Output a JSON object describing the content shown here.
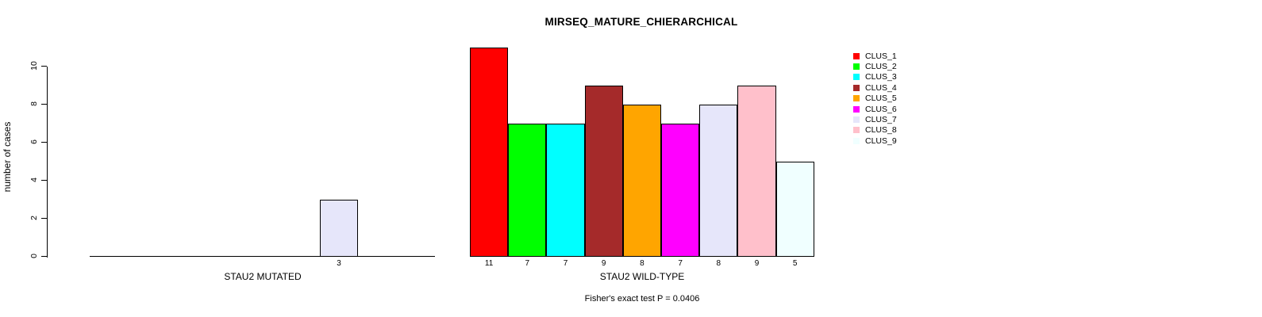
{
  "chart_data": {
    "type": "bar",
    "title": "MIRSEQ_MATURE_CHIERARCHICAL",
    "ylabel": "number of cases",
    "ylim": [
      0,
      10
    ],
    "yticks": [
      0,
      2,
      4,
      6,
      8,
      10
    ],
    "grid": false,
    "legend_position": "right",
    "footer": "Fisher's exact test P = 0.0406",
    "categories": [
      "CLUS_1",
      "CLUS_2",
      "CLUS_3",
      "CLUS_4",
      "CLUS_5",
      "CLUS_6",
      "CLUS_7",
      "CLUS_8",
      "CLUS_9"
    ],
    "legend": [
      {
        "label": "CLUS_1",
        "color": "#FF0000"
      },
      {
        "label": "CLUS_2",
        "color": "#00FF00"
      },
      {
        "label": "CLUS_3",
        "color": "#00FFFF"
      },
      {
        "label": "CLUS_4",
        "color": "#A52A2A"
      },
      {
        "label": "CLUS_5",
        "color": "#FFA500"
      },
      {
        "label": "CLUS_6",
        "color": "#FF00FF"
      },
      {
        "label": "CLUS_7",
        "color": "#E6E6FA"
      },
      {
        "label": "CLUS_8",
        "color": "#FFC0CB"
      },
      {
        "label": "CLUS_9",
        "color": "#F0FFFF"
      }
    ],
    "groups": [
      {
        "label": "STAU2 MUTATED",
        "values": [
          0,
          0,
          0,
          0,
          0,
          0,
          3,
          0,
          0
        ],
        "bar_labels": [
          "",
          "",
          "",
          "",
          "",
          "",
          "3",
          "",
          ""
        ]
      },
      {
        "label": "STAU2 WILD-TYPE",
        "values": [
          11,
          7,
          7,
          9,
          8,
          7,
          8,
          9,
          5
        ],
        "bar_labels": [
          "11",
          "7",
          "7",
          "9",
          "8",
          "7",
          "8",
          "9",
          "5"
        ]
      }
    ],
    "axis_color": "#000000",
    "background_color": "#FFFFFF"
  }
}
